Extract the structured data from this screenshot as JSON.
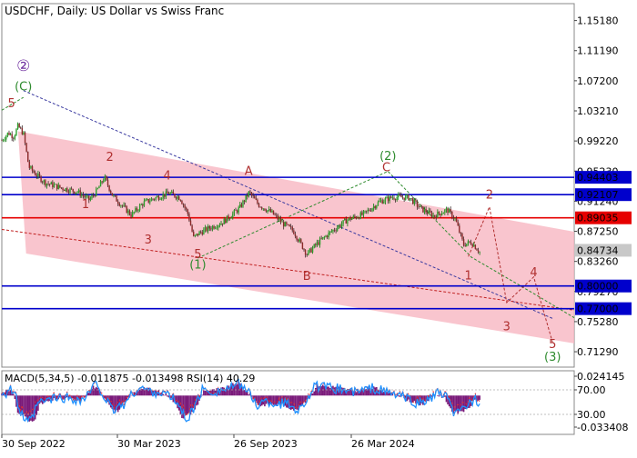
{
  "chart_data": {
    "type": "candlestick",
    "title": "USDCHF, Daily:  US Dollar vs Swiss Franc",
    "x_ticks": [
      "30 Sep 2022",
      "30 Mar 2023",
      "26 Sep 2023",
      "26 Mar 2024"
    ],
    "price_axis": {
      "range": [
        0.6925,
        1.1742
      ],
      "ticks": [
        "1.15180",
        "1.11190",
        "1.07200",
        "1.03210",
        "0.99220",
        "0.95230",
        "0.91240",
        "0.87250",
        "0.83260",
        "0.79270",
        "0.75280",
        "0.71290"
      ]
    },
    "levels": [
      {
        "value": 0.94403,
        "label": "0.94403",
        "color": "#0000cc"
      },
      {
        "value": 0.92107,
        "label": "0.92107",
        "color": "#0000cc"
      },
      {
        "value": 0.89035,
        "label": "0.89035",
        "color": "#e60000"
      },
      {
        "value": 0.8,
        "label": "0.80000",
        "color": "#0000cc"
      },
      {
        "value": 0.77,
        "label": "0.77000",
        "color": "#0000cc"
      }
    ],
    "current_price": {
      "value": 0.84734,
      "label": "0.84734"
    },
    "price_path": [
      {
        "t": 0.0,
        "v": 0.993
      },
      {
        "t": 0.012,
        "v": 1.003
      },
      {
        "t": 0.022,
        "v": 0.998
      },
      {
        "t": 0.03,
        "v": 1.012
      },
      {
        "t": 0.04,
        "v": 1.002
      },
      {
        "t": 0.05,
        "v": 0.958
      },
      {
        "t": 0.06,
        "v": 0.95
      },
      {
        "t": 0.08,
        "v": 0.937
      },
      {
        "t": 0.11,
        "v": 0.93
      },
      {
        "t": 0.14,
        "v": 0.925
      },
      {
        "t": 0.162,
        "v": 0.914
      },
      {
        "t": 0.175,
        "v": 0.925
      },
      {
        "t": 0.19,
        "v": 0.944
      },
      {
        "t": 0.205,
        "v": 0.92
      },
      {
        "t": 0.222,
        "v": 0.907
      },
      {
        "t": 0.24,
        "v": 0.894
      },
      {
        "t": 0.262,
        "v": 0.91
      },
      {
        "t": 0.285,
        "v": 0.917
      },
      {
        "t": 0.31,
        "v": 0.923
      },
      {
        "t": 0.33,
        "v": 0.917
      },
      {
        "t": 0.345,
        "v": 0.895
      },
      {
        "t": 0.355,
        "v": 0.864
      },
      {
        "t": 0.365,
        "v": 0.87
      },
      {
        "t": 0.385,
        "v": 0.877
      },
      {
        "t": 0.41,
        "v": 0.885
      },
      {
        "t": 0.44,
        "v": 0.903
      },
      {
        "t": 0.458,
        "v": 0.924
      },
      {
        "t": 0.475,
        "v": 0.908
      },
      {
        "t": 0.5,
        "v": 0.897
      },
      {
        "t": 0.52,
        "v": 0.883
      },
      {
        "t": 0.54,
        "v": 0.873
      },
      {
        "t": 0.565,
        "v": 0.842
      },
      {
        "t": 0.585,
        "v": 0.857
      },
      {
        "t": 0.61,
        "v": 0.872
      },
      {
        "t": 0.64,
        "v": 0.888
      },
      {
        "t": 0.67,
        "v": 0.895
      },
      {
        "t": 0.7,
        "v": 0.912
      },
      {
        "t": 0.725,
        "v": 0.918
      },
      {
        "t": 0.755,
        "v": 0.917
      },
      {
        "t": 0.775,
        "v": 0.903
      },
      {
        "t": 0.8,
        "v": 0.893
      },
      {
        "t": 0.825,
        "v": 0.901
      },
      {
        "t": 0.84,
        "v": 0.888
      },
      {
        "t": 0.855,
        "v": 0.855
      },
      {
        "t": 0.87,
        "v": 0.858
      },
      {
        "t": 0.885,
        "v": 0.845
      }
    ],
    "wave_labels": [
      {
        "text": "②",
        "t": 0.04,
        "v": 1.085,
        "color": "#7030a0"
      },
      {
        "text": "(C)",
        "t": 0.04,
        "v": 1.059,
        "color": "#2e8b2e"
      },
      {
        "text": "5",
        "t": 0.018,
        "v": 1.037,
        "color": "#b03030"
      },
      {
        "text": "2",
        "t": 0.2,
        "v": 0.966,
        "color": "#b03030"
      },
      {
        "text": "1",
        "t": 0.155,
        "v": 0.903,
        "color": "#b03030"
      },
      {
        "text": "4",
        "t": 0.306,
        "v": 0.941,
        "color": "#b03030"
      },
      {
        "text": "3",
        "t": 0.271,
        "v": 0.856,
        "color": "#b03030"
      },
      {
        "text": "A",
        "t": 0.457,
        "v": 0.947,
        "color": "#b03030"
      },
      {
        "text": "5",
        "t": 0.363,
        "v": 0.837,
        "color": "#b03030"
      },
      {
        "text": "(1)",
        "t": 0.363,
        "v": 0.823,
        "color": "#2e8b2e"
      },
      {
        "text": "B",
        "t": 0.565,
        "v": 0.808,
        "color": "#b03030"
      },
      {
        "text": "(2)",
        "t": 0.715,
        "v": 0.967,
        "color": "#2e8b2e"
      },
      {
        "text": "C",
        "t": 0.712,
        "v": 0.952,
        "color": "#b03030"
      },
      {
        "text": "2",
        "t": 0.903,
        "v": 0.916,
        "color": "#b03030"
      },
      {
        "text": "1",
        "t": 0.864,
        "v": 0.809,
        "color": "#b03030"
      },
      {
        "text": "4",
        "t": 0.985,
        "v": 0.813,
        "color": "#b03030"
      },
      {
        "text": "3",
        "t": 0.935,
        "v": 0.741,
        "color": "#b03030"
      },
      {
        "text": "5",
        "t": 1.02,
        "v": 0.718,
        "color": "#b03030"
      },
      {
        "text": "(3)",
        "t": 1.02,
        "v": 0.701,
        "color": "#2e8b2e"
      }
    ],
    "macd": {
      "label": "MACD(5,34,5) -0.011875 -0.013498 RSI(14) 40.29",
      "range": [
        -0.0448,
        0.0286
      ],
      "ticks": [
        "0.024145",
        "70.00",
        "30.00",
        "-0.033408"
      ]
    }
  }
}
